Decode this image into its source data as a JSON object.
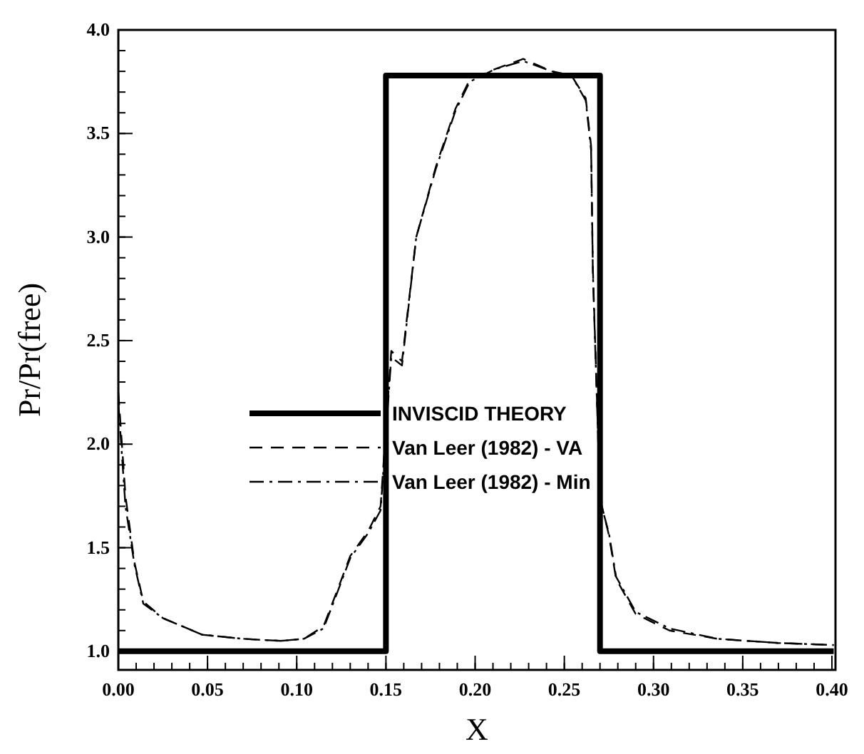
{
  "chart_data": {
    "type": "line",
    "xlabel": "X",
    "ylabel": "Pr/Pr(free)",
    "xlim": [
      0,
      0.402
    ],
    "ylim": [
      0.91,
      4.0
    ],
    "xticks": [
      {
        "value": 0,
        "label": "0.00"
      },
      {
        "value": 0.05,
        "label": "0.05"
      },
      {
        "value": 0.1,
        "label": "0.10"
      },
      {
        "value": 0.15,
        "label": "0.15"
      },
      {
        "value": 0.2,
        "label": "0.20"
      },
      {
        "value": 0.25,
        "label": "0.25"
      },
      {
        "value": 0.3,
        "label": "0.30"
      },
      {
        "value": 0.35,
        "label": "0.35"
      },
      {
        "value": 0.4,
        "label": "0.40"
      }
    ],
    "yticks": [
      {
        "value": 1,
        "label": "1.0"
      },
      {
        "value": 1.5,
        "label": "1.5"
      },
      {
        "value": 2,
        "label": "2.0"
      },
      {
        "value": 2.5,
        "label": "2.5"
      },
      {
        "value": 3,
        "label": "3.0"
      },
      {
        "value": 3.5,
        "label": "3.5"
      },
      {
        "value": 4,
        "label": "4.0"
      }
    ],
    "grid": false,
    "legend": "center",
    "series": [
      {
        "name": "INVISCID THEORY",
        "color": "#000000",
        "line_style": "solid",
        "x": [
          0,
          0.15,
          0.15,
          0.27,
          0.27,
          0.401
        ],
        "values": [
          1,
          1,
          3.78,
          3.78,
          1,
          1
        ]
      },
      {
        "name": "Van Leer (1982) - VA",
        "color": "#000000",
        "line_style": "dashed",
        "x": [
          0,
          0.004,
          0.009,
          0.014,
          0.025,
          0.036,
          0.047,
          0.07,
          0.091,
          0.104,
          0.115,
          0.123,
          0.13,
          0.14,
          0.147,
          0.153,
          0.159,
          0.167,
          0.178,
          0.189,
          0.197,
          0.211,
          0.227,
          0.243,
          0.254,
          0.262,
          0.265,
          0.266,
          0.27,
          0.275,
          0.279,
          0.29,
          0.309,
          0.336,
          0.37,
          0.401
        ],
        "values": [
          2.25,
          1.75,
          1.43,
          1.24,
          1.16,
          1.12,
          1.08,
          1.06,
          1.05,
          1.06,
          1.12,
          1.3,
          1.46,
          1.58,
          1.7,
          2.45,
          2.4,
          3.0,
          3.34,
          3.62,
          3.76,
          3.81,
          3.86,
          3.8,
          3.78,
          3.67,
          3.44,
          2.85,
          1.74,
          1.56,
          1.35,
          1.18,
          1.1,
          1.06,
          1.04,
          1.03
        ]
      },
      {
        "name": "Van Leer (1982) - Min",
        "color": "#000000",
        "line_style": "dashdot",
        "x": [
          0,
          0.004,
          0.009,
          0.014,
          0.025,
          0.036,
          0.047,
          0.07,
          0.091,
          0.104,
          0.115,
          0.123,
          0.13,
          0.14,
          0.147,
          0.153,
          0.159,
          0.167,
          0.178,
          0.189,
          0.197,
          0.211,
          0.227,
          0.243,
          0.254,
          0.262,
          0.265,
          0.266,
          0.27,
          0.275,
          0.279,
          0.29,
          0.309,
          0.336,
          0.37,
          0.401
        ],
        "values": [
          2.2,
          1.7,
          1.42,
          1.23,
          1.16,
          1.12,
          1.08,
          1.06,
          1.05,
          1.06,
          1.11,
          1.29,
          1.45,
          1.57,
          1.68,
          2.42,
          2.38,
          3.0,
          3.33,
          3.61,
          3.75,
          3.81,
          3.85,
          3.8,
          3.78,
          3.66,
          3.42,
          2.83,
          1.73,
          1.57,
          1.36,
          1.19,
          1.11,
          1.06,
          1.04,
          1.03
        ]
      }
    ]
  }
}
